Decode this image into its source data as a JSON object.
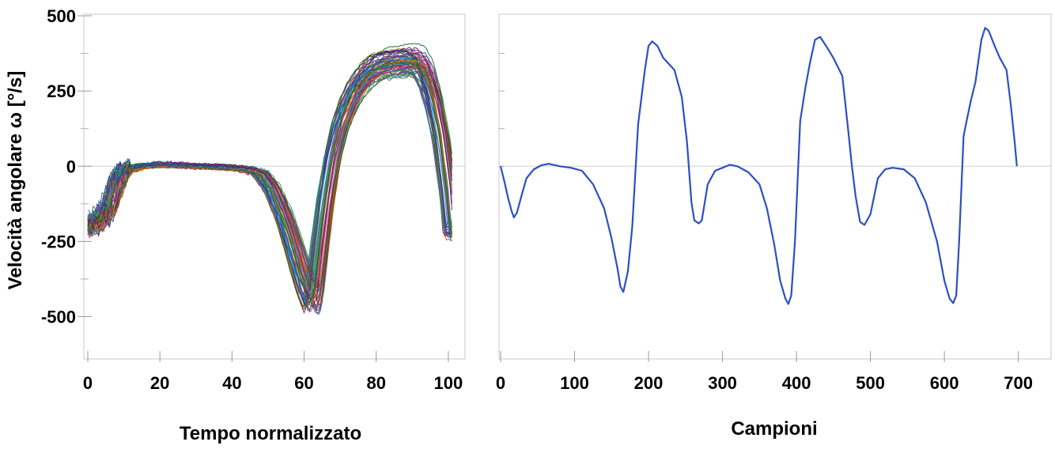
{
  "chart_data": [
    {
      "type": "line",
      "title": "",
      "xlabel": "Tempo normalizzato",
      "ylabel": "Velocità angolare ω [°/s]",
      "xlim": [
        0,
        102
      ],
      "ylim": [
        -630,
        500
      ],
      "xticks": [
        0,
        20,
        40,
        60,
        80,
        100
      ],
      "yticks": [
        500,
        250,
        0,
        -250,
        -500
      ],
      "grid": false,
      "zero_line": true,
      "legend": "none",
      "n_series": 60,
      "series_colors": [
        "#1f3fb4",
        "#c0392b",
        "#1e8f3a",
        "#8e44ad",
        "#16a0a0",
        "#d35400",
        "#2c3e50",
        "#e84393",
        "#6c5c1a",
        "#0b7dda",
        "#7d3c98",
        "#27ae60",
        "#b71c1c",
        "#00897b",
        "#283593",
        "#9e9d24",
        "#4a148c",
        "#e65100",
        "#1b5e20",
        "#3949ab"
      ],
      "mean_curve": {
        "x": [
          0,
          2,
          4,
          6,
          8,
          10,
          12,
          15,
          20,
          25,
          30,
          35,
          40,
          44,
          48,
          51,
          54,
          56,
          58,
          60,
          62,
          63,
          64,
          66,
          68,
          70,
          72,
          74,
          76,
          78,
          80,
          82,
          85,
          88,
          90,
          92,
          94,
          96,
          98,
          100,
          101
        ],
        "y": [
          -200,
          -190,
          -170,
          -140,
          -60,
          -15,
          -8,
          0,
          5,
          3,
          0,
          -2,
          -5,
          -10,
          -25,
          -75,
          -160,
          -230,
          -310,
          -390,
          -450,
          -420,
          -320,
          -120,
          30,
          130,
          200,
          250,
          285,
          310,
          330,
          340,
          345,
          350,
          352,
          340,
          300,
          220,
          100,
          -80,
          -220
        ]
      },
      "spread": 26,
      "lag_spread": 2.5
    },
    {
      "type": "line",
      "title": "",
      "xlabel": "Campioni",
      "ylabel": "",
      "xlim": [
        0,
        710
      ],
      "ylim": [
        -630,
        500
      ],
      "xticks": [
        0,
        100,
        200,
        300,
        400,
        500,
        600,
        700
      ],
      "yticks": [],
      "grid": false,
      "zero_line": true,
      "legend": "none",
      "series": [
        {
          "color": "#2d4fc4",
          "x": [
            0,
            5,
            10,
            15,
            18,
            22,
            28,
            35,
            45,
            55,
            65,
            80,
            95,
            110,
            125,
            140,
            150,
            158,
            162,
            166,
            172,
            178,
            186,
            190,
            195,
            200,
            205,
            212,
            220,
            235,
            245,
            252,
            258,
            262,
            268,
            272,
            280,
            290,
            300,
            310,
            320,
            335,
            350,
            360,
            370,
            378,
            385,
            389,
            393,
            398,
            405,
            412,
            418,
            425,
            432,
            440,
            450,
            462,
            470,
            475,
            480,
            486,
            492,
            500,
            510,
            520,
            530,
            545,
            560,
            575,
            590,
            600,
            607,
            612,
            616,
            620,
            626,
            630,
            636,
            642,
            650,
            655,
            660,
            668,
            675,
            684,
            690,
            695,
            698
          ],
          "y": [
            0,
            -50,
            -105,
            -150,
            -170,
            -155,
            -100,
            -40,
            -10,
            3,
            8,
            0,
            -5,
            -15,
            -60,
            -140,
            -240,
            -340,
            -400,
            -418,
            -350,
            -200,
            140,
            220,
            320,
            400,
            415,
            400,
            360,
            320,
            230,
            80,
            -120,
            -180,
            -190,
            -180,
            -60,
            -15,
            -5,
            5,
            0,
            -20,
            -60,
            -140,
            -260,
            -380,
            -440,
            -458,
            -430,
            -250,
            150,
            260,
            340,
            420,
            430,
            400,
            360,
            300,
            120,
            0,
            -100,
            -185,
            -195,
            -160,
            -40,
            -10,
            -5,
            -10,
            -40,
            -120,
            -250,
            -380,
            -440,
            -455,
            -430,
            -250,
            100,
            150,
            220,
            280,
            420,
            460,
            450,
            400,
            360,
            320,
            200,
            80,
            0
          ]
        }
      ],
      "labels": [
        "-",
        "-",
        "-"
      ]
    }
  ]
}
